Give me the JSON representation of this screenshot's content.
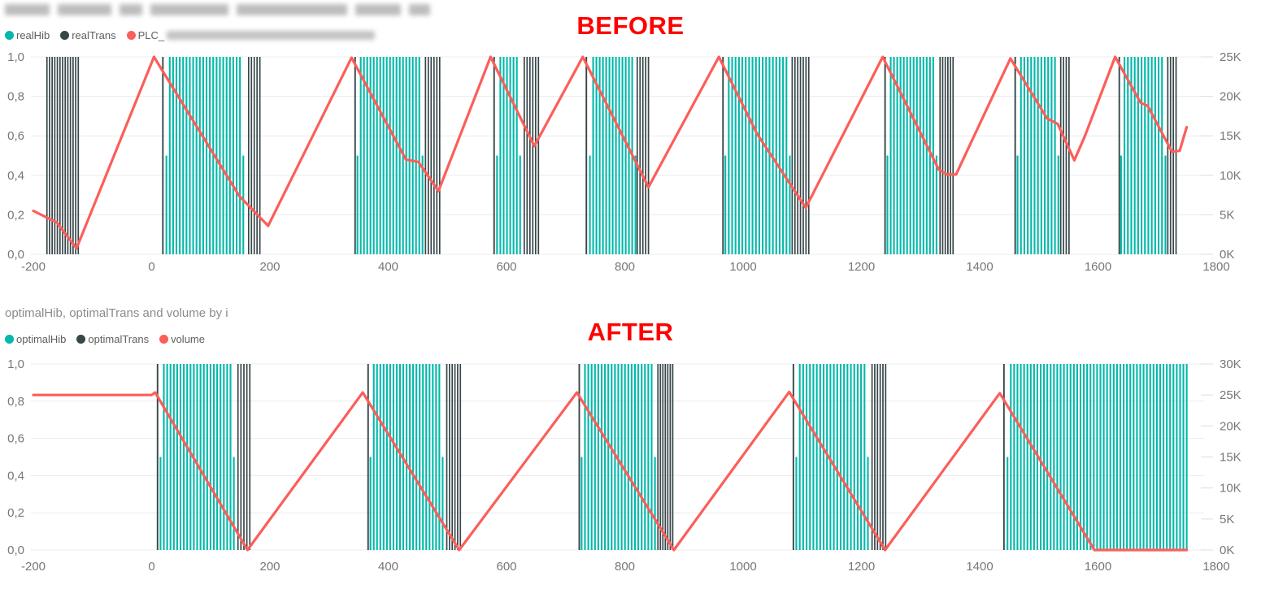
{
  "colors": {
    "hib_teal": "#01B8AA",
    "trans_dark": "#374649",
    "line_red": "#FC5E5A",
    "annotation_red": "#FF0000",
    "grid": "#ECECEC",
    "axis_text": "#777777",
    "title_text": "#8B8B8B",
    "legend_text": "#5F5F5F"
  },
  "chart_data": [
    {
      "type": "combo-bar-line",
      "annotation": "BEFORE",
      "title": "",
      "title_redacted": true,
      "legend_position": "top-left",
      "legend_items": [
        {
          "label": "realHib",
          "color": "#01B8AA",
          "redacted_suffix": false
        },
        {
          "label": "realTrans",
          "color": "#374649",
          "redacted_suffix": false
        },
        {
          "label": "PLC_",
          "color": "#FC5E5A",
          "redacted_suffix": true
        }
      ],
      "x_axis": {
        "min": -200,
        "max": 1800,
        "tick_values": [
          -200,
          0,
          200,
          400,
          600,
          800,
          1000,
          1200,
          1400,
          1600,
          1800
        ],
        "tick_labels": [
          "-200",
          "0",
          "200",
          "400",
          "600",
          "800",
          "1000",
          "1200",
          "1400",
          "1600",
          "1800"
        ]
      },
      "y_left": {
        "min": 0,
        "max": 1,
        "tick_labels": [
          "1,0",
          "0,8",
          "0,6",
          "0,4",
          "0,2",
          "0,0"
        ]
      },
      "y_right": {
        "min": 0,
        "max": 25000,
        "tick_labels": [
          "25K",
          "20K",
          "15K",
          "10K",
          "5K",
          "0K"
        ]
      },
      "grid": "horizontal",
      "series": [
        {
          "name": "realHib",
          "type": "bar",
          "axis": "left",
          "full_value": 1,
          "ramp_value": 0.5,
          "clusters": [
            {
              "start": 25,
              "end": 155,
              "ramp_start": true,
              "ramp_end": true
            },
            {
              "start": 348,
              "end": 458,
              "ramp_start": true,
              "ramp_end": true
            },
            {
              "start": 584,
              "end": 623,
              "ramp_start": true,
              "ramp_end": true
            },
            {
              "start": 741,
              "end": 818,
              "ramp_start": true,
              "ramp_end": true
            },
            {
              "start": 970,
              "end": 1079,
              "ramp_start": true,
              "ramp_end": true
            },
            {
              "start": 1244,
              "end": 1327,
              "ramp_start": true,
              "ramp_end": true
            },
            {
              "start": 1464,
              "end": 1533,
              "ramp_start": true,
              "ramp_end": true
            },
            {
              "start": 1639,
              "end": 1714,
              "ramp_start": true,
              "ramp_end": true
            }
          ]
        },
        {
          "name": "realTrans",
          "type": "bar",
          "axis": "left",
          "full_value": 1,
          "singles": [
            19,
            344,
            579,
            735,
            966,
            1240,
            1460,
            1636
          ],
          "clusters": [
            {
              "start": -177,
              "end": -124
            },
            {
              "start": 164,
              "end": 183
            },
            {
              "start": 463,
              "end": 487
            },
            {
              "start": 630,
              "end": 654
            },
            {
              "start": 821,
              "end": 840
            },
            {
              "start": 1083,
              "end": 1111
            },
            {
              "start": 1333,
              "end": 1355
            },
            {
              "start": 1537,
              "end": 1551
            },
            {
              "start": 1718,
              "end": 1732
            }
          ]
        },
        {
          "name": "PLC_(redacted)",
          "type": "line",
          "axis": "right",
          "points": [
            [
              -200,
              5500
            ],
            [
              -160,
              4000
            ],
            [
              -127,
              750
            ],
            [
              4,
              25000
            ],
            [
              148,
              7400
            ],
            [
              197,
              3600
            ],
            [
              338,
              24900
            ],
            [
              430,
              12000
            ],
            [
              451,
              11700
            ],
            [
              485,
              8000
            ],
            [
              573,
              25000
            ],
            [
              647,
              13700
            ],
            [
              729,
              25000
            ],
            [
              840,
              8500
            ],
            [
              959,
              25000
            ],
            [
              1024,
              15200
            ],
            [
              1106,
              5900
            ],
            [
              1236,
              25000
            ],
            [
              1331,
              10700
            ],
            [
              1345,
              10100
            ],
            [
              1360,
              10100
            ],
            [
              1452,
              24800
            ],
            [
              1514,
              17200
            ],
            [
              1532,
              16500
            ],
            [
              1560,
              11900
            ],
            [
              1578,
              15000
            ],
            [
              1629,
              25000
            ],
            [
              1672,
              19200
            ],
            [
              1684,
              18800
            ],
            [
              1725,
              13000
            ],
            [
              1738,
              13100
            ],
            [
              1750,
              16100
            ]
          ]
        }
      ]
    },
    {
      "type": "combo-bar-line",
      "annotation": "AFTER",
      "title": "optimalHib, optimalTrans and volume by i",
      "title_redacted": false,
      "legend_position": "top-left",
      "legend_items": [
        {
          "label": "optimalHib",
          "color": "#01B8AA",
          "redacted_suffix": false
        },
        {
          "label": "optimalTrans",
          "color": "#374649",
          "redacted_suffix": false
        },
        {
          "label": "volume",
          "color": "#FC5E5A",
          "redacted_suffix": false
        }
      ],
      "x_axis": {
        "min": -200,
        "max": 1800,
        "tick_values": [
          -200,
          0,
          200,
          400,
          600,
          800,
          1000,
          1200,
          1400,
          1600,
          1800
        ],
        "tick_labels": [
          "-200",
          "0",
          "200",
          "400",
          "600",
          "800",
          "1000",
          "1200",
          "1400",
          "1600",
          "1800"
        ]
      },
      "y_left": {
        "min": 0,
        "max": 1,
        "tick_labels": [
          "1,0",
          "0,8",
          "0,6",
          "0,4",
          "0,2",
          "0,0"
        ]
      },
      "y_right": {
        "min": 0,
        "max": 30000,
        "tick_labels": [
          "30K",
          "25K",
          "20K",
          "15K",
          "10K",
          "5K",
          "0K"
        ]
      },
      "grid": "horizontal",
      "series": [
        {
          "name": "optimalHib",
          "type": "bar",
          "axis": "left",
          "full_value": 1,
          "ramp_value": 0.5,
          "clusters": [
            {
              "start": 15,
              "end": 139,
              "ramp_start": true,
              "ramp_end": true
            },
            {
              "start": 370,
              "end": 492,
              "ramp_start": true,
              "ramp_end": true
            },
            {
              "start": 727,
              "end": 851,
              "ramp_start": true,
              "ramp_end": true
            },
            {
              "start": 1090,
              "end": 1211,
              "ramp_start": true,
              "ramp_end": true
            },
            {
              "start": 1447,
              "end": 1750,
              "ramp_start": true,
              "ramp_end": false
            }
          ]
        },
        {
          "name": "optimalTrans",
          "type": "bar",
          "axis": "left",
          "full_value": 1,
          "singles": [
            10,
            366,
            723,
            1085,
            1441
          ],
          "clusters": [
            {
              "start": 146,
              "end": 166
            },
            {
              "start": 499,
              "end": 522
            },
            {
              "start": 856,
              "end": 881
            },
            {
              "start": 1218,
              "end": 1241
            }
          ]
        },
        {
          "name": "volume",
          "type": "line",
          "axis": "right",
          "points": [
            [
              -200,
              25000
            ],
            [
              0,
              25000
            ],
            [
              6,
              25400
            ],
            [
              162,
              0
            ],
            [
              357,
              25400
            ],
            [
              520,
              0
            ],
            [
              719,
              25400
            ],
            [
              883,
              0
            ],
            [
              1078,
              25500
            ],
            [
              1240,
              0
            ],
            [
              1434,
              25300
            ],
            [
              1594,
              0
            ],
            [
              1750,
              0
            ]
          ]
        }
      ]
    }
  ]
}
